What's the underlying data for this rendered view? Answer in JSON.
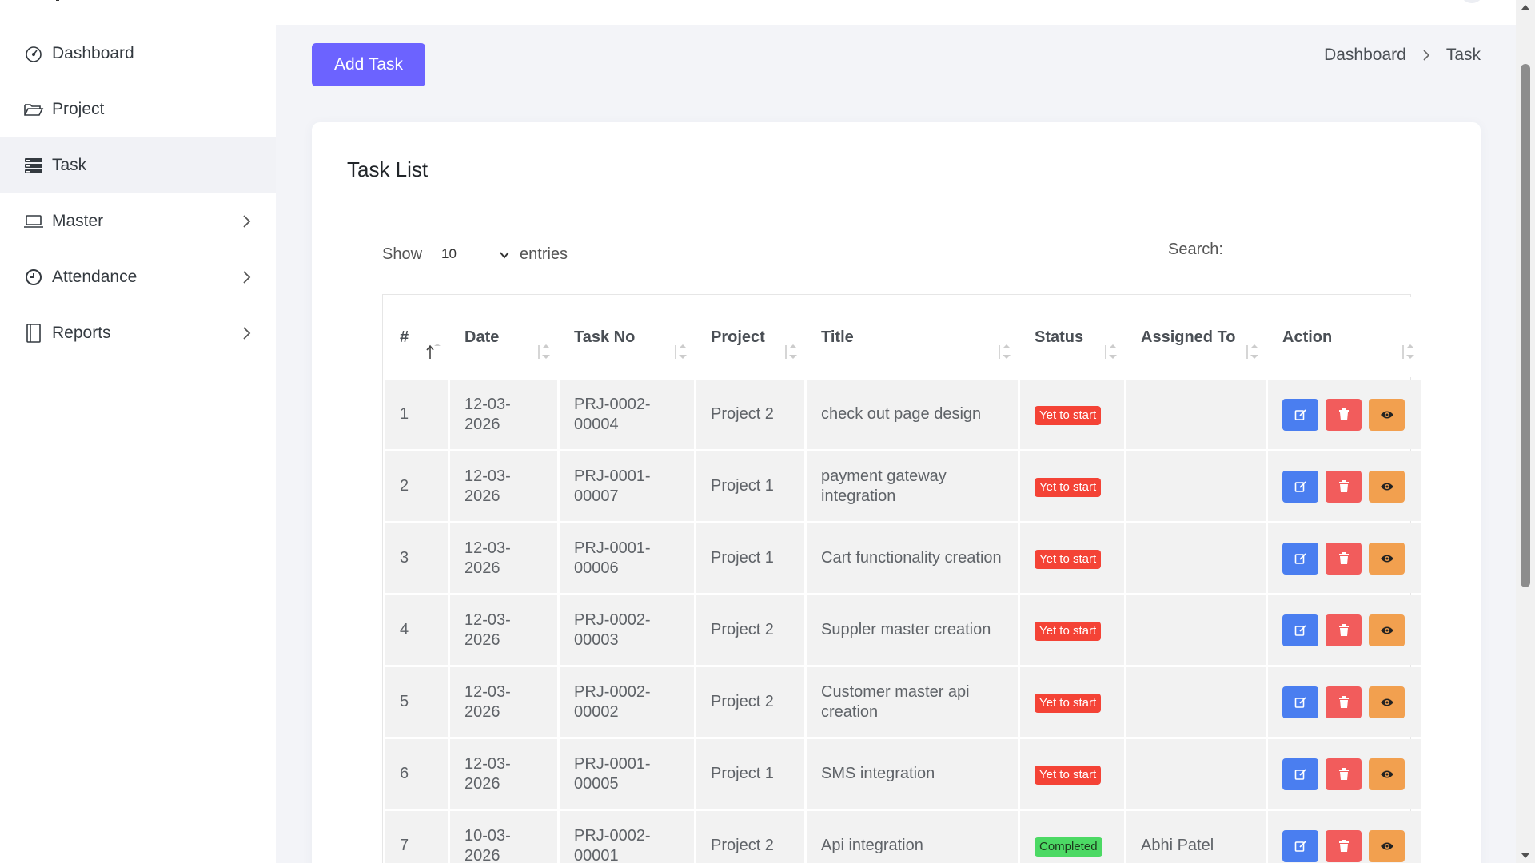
{
  "sidebar": {
    "items": [
      {
        "label": "Dashboard",
        "icon": "speedometer-icon",
        "active": false,
        "has_children": false
      },
      {
        "label": "Project",
        "icon": "folder-open-icon",
        "active": false,
        "has_children": false
      },
      {
        "label": "Task",
        "icon": "task-list-icon",
        "active": true,
        "has_children": false
      },
      {
        "label": "Master",
        "icon": "laptop-icon",
        "active": false,
        "has_children": true
      },
      {
        "label": "Attendance",
        "icon": "clock-icon",
        "active": false,
        "has_children": true
      },
      {
        "label": "Reports",
        "icon": "book-icon",
        "active": false,
        "has_children": true
      }
    ]
  },
  "header": {
    "add_button_label": "Add Task",
    "breadcrumb": [
      "Dashboard",
      "Task"
    ]
  },
  "card": {
    "title": "Task List",
    "show_label": "Show",
    "entries_value": "10",
    "entries_label": "entries",
    "search_label": "Search:",
    "search_value": ""
  },
  "table": {
    "columns": [
      "#",
      "Date",
      "Task No",
      "Project",
      "Title",
      "Status",
      "Assigned To",
      "Action"
    ],
    "rows": [
      {
        "no": "1",
        "date": "12-03-2026",
        "task_no": "PRJ-0002-00004",
        "project": "Project 2",
        "title": "check out page design",
        "status": "Yet to start",
        "assigned_to": ""
      },
      {
        "no": "2",
        "date": "12-03-2026",
        "task_no": "PRJ-0001-00007",
        "project": "Project 1",
        "title": "payment gateway integration",
        "status": "Yet to start",
        "assigned_to": ""
      },
      {
        "no": "3",
        "date": "12-03-2026",
        "task_no": "PRJ-0001-00006",
        "project": "Project 1",
        "title": "Cart functionality creation",
        "status": "Yet to start",
        "assigned_to": ""
      },
      {
        "no": "4",
        "date": "12-03-2026",
        "task_no": "PRJ-0002-00003",
        "project": "Project 2",
        "title": "Suppler master creation",
        "status": "Yet to start",
        "assigned_to": ""
      },
      {
        "no": "5",
        "date": "12-03-2026",
        "task_no": "PRJ-0002-00002",
        "project": "Project 2",
        "title": "Customer master api creation",
        "status": "Yet to start",
        "assigned_to": ""
      },
      {
        "no": "6",
        "date": "12-03-2026",
        "task_no": "PRJ-0001-00005",
        "project": "Project 1",
        "title": "SMS integration",
        "status": "Yet to start",
        "assigned_to": ""
      },
      {
        "no": "7",
        "date": "10-03-2026",
        "task_no": "PRJ-0002-00001",
        "project": "Project 2",
        "title": "Api integration",
        "status": "Completed",
        "assigned_to": "Abhi Patel"
      }
    ]
  },
  "colors": {
    "accent": "#6c63ff",
    "status_yet_to_start": "#f44336",
    "status_completed": "#4cd964",
    "edit": "#4a7ef0",
    "delete": "#f25c5c",
    "view": "#f2a04f"
  }
}
